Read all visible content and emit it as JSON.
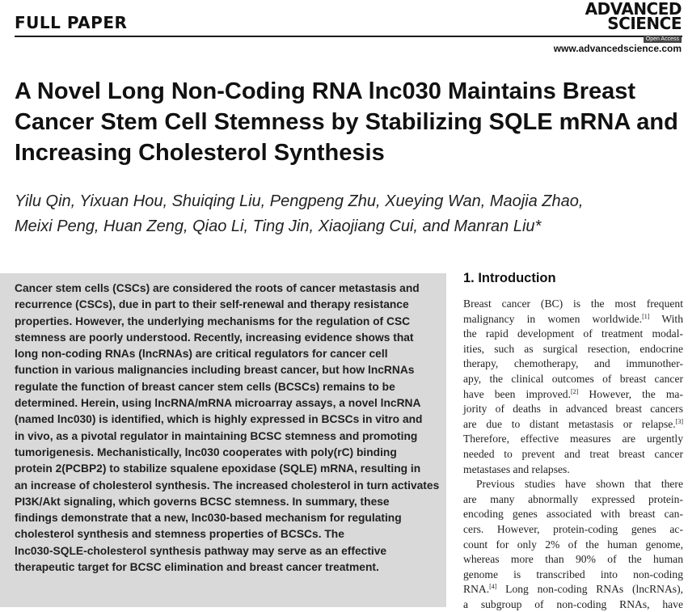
{
  "header": {
    "section_label": "FULL PAPER",
    "journal_line1": "ADVANCED",
    "journal_line2": "SCIENCE",
    "open_access": "Open Access",
    "journal_url": "www.advancedscience.com"
  },
  "article": {
    "title_lines": [
      "A Novel Long Non-Coding RNA lnc030 Maintains Breast",
      "Cancer Stem Cell Stemness by Stabilizing SQLE mRNA and",
      "Increasing Cholesterol Synthesis"
    ],
    "authors_lines": [
      "Yilu Qin, Yixuan Hou, Shuiqing Liu, Pengpeng Zhu, Xueying Wan, Maojia Zhao,",
      "Meixi Peng, Huan Zeng, Qiao Li, Ting Jin, Xiaojiang Cui, and Manran Liu*"
    ]
  },
  "abstract": {
    "lines": [
      "Cancer stem cells (CSCs) are considered the roots of cancer metastasis and",
      "recurrence (CSCs), due in part to their self-renewal and therapy resistance",
      "properties. However, the underlying mechanisms for the regulation of CSC",
      "stemness are poorly understood. Recently, increasing evidence shows that",
      "long non-coding RNAs (lncRNAs) are critical regulators for cancer cell",
      "function in various malignancies including breast cancer, but how lncRNAs",
      "regulate the function of breast cancer stem cells (BCSCs) remains to be",
      "determined. Herein, using lncRNA/mRNA microarray assays, a novel lncRNA",
      "(named lnc030) is identified, which is highly expressed in BCSCs in vitro and",
      "in vivo, as a pivotal regulator in maintaining BCSC stemness and promoting",
      "tumorigenesis. Mechanistically, lnc030 cooperates with poly(rC) binding",
      "protein 2(PCBP2) to stabilize squalene epoxidase (SQLE) mRNA, resulting in",
      "an increase of cholesterol synthesis. The increased cholesterol in turn activates",
      "PI3K/Akt signaling, which governs BCSC stemness. In summary, these",
      "findings demonstrate that a new, lnc030-based mechanism for regulating",
      "cholesterol synthesis and stemness properties of BCSCs. The",
      "lnc030-SQLE-cholesterol synthesis pathway may serve as an effective",
      "therapeutic target for BCSC elimination and breast cancer treatment."
    ]
  },
  "introduction": {
    "heading": "1. Introduction",
    "lines": [
      {
        "t": "Breast cancer (BC) is the most frequent"
      },
      {
        "t": "malignancy in women worldwide.",
        "sup": "[1]",
        "after": " With"
      },
      {
        "t": "the rapid development of treatment modal-"
      },
      {
        "t": "ities, such as surgical resection, endocrine"
      },
      {
        "t": "therapy, chemotherapy, and immunother-"
      },
      {
        "t": "apy, the clinical outcomes of breast cancer"
      },
      {
        "t": "have been improved.",
        "sup": "[2]",
        "after": " However, the ma-"
      },
      {
        "t": "jority of deaths in advanced breast cancers"
      },
      {
        "t": "are due to distant metastasis or relapse.",
        "sup": "[3]",
        "after": ""
      },
      {
        "t": "Therefore, effective measures are urgently"
      },
      {
        "t": "needed to prevent and treat breast cancer"
      },
      {
        "t": "metastases and relapses.",
        "last": true
      },
      {
        "t": "Previous studies have shown that there",
        "indent": true
      },
      {
        "t": "are many abnormally expressed protein-"
      },
      {
        "t": "encoding genes associated with breast can-"
      },
      {
        "t": "cers. However, protein-coding genes ac-"
      },
      {
        "t": "count for only 2% of the human genome,"
      },
      {
        "t": "whereas more than 90% of the human"
      },
      {
        "t": "genome is transcribed into non-coding"
      },
      {
        "t": "RNA.",
        "sup": "[4]",
        "after": " Long non-coding RNAs (lncRNAs),"
      },
      {
        "t": "a subgroup of non-coding RNAs, have"
      }
    ]
  }
}
